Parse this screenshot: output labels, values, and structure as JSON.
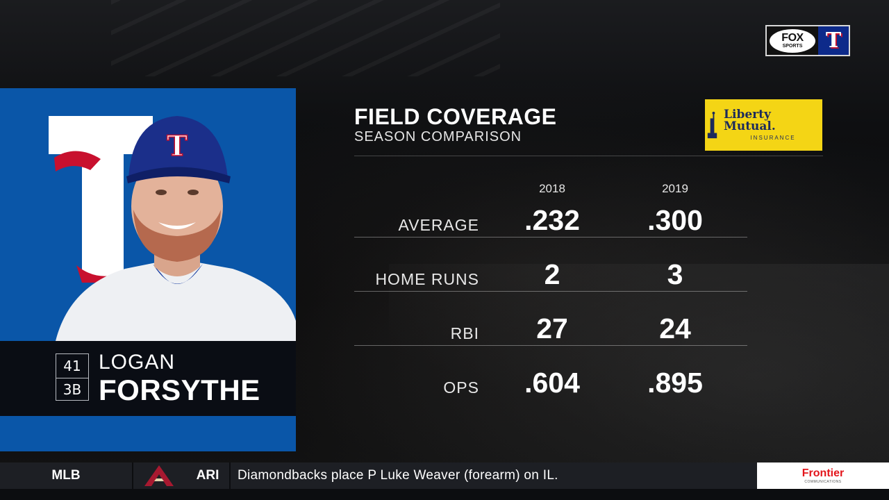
{
  "network_bug": {
    "network": "FOX",
    "network_sub": "SPORTS",
    "team_letter": "T"
  },
  "player": {
    "number": "41",
    "position": "3B",
    "first_name": "LOGAN",
    "last_name": "FORSYTHE",
    "team_logo": "rangers-t-logo",
    "cap_letter": "T"
  },
  "panel": {
    "title": "FIELD COVERAGE",
    "subtitle": "SEASON COMPARISON",
    "years": [
      "2018",
      "2019"
    ],
    "sponsor": {
      "name": "Liberty Mutual.",
      "tagline": "INSURANCE",
      "background": "#f4d515"
    },
    "stats": [
      {
        "label": "AVERAGE",
        "values": [
          ".232",
          ".300"
        ]
      },
      {
        "label": "HOME RUNS",
        "values": [
          "2",
          "3"
        ]
      },
      {
        "label": "RBI",
        "values": [
          "27",
          "24"
        ]
      },
      {
        "label": "OPS",
        "values": [
          ".604",
          ".895"
        ]
      }
    ]
  },
  "ticker": {
    "league": "MLB",
    "team_logo": "diamondbacks-a-logo",
    "team": "ARI",
    "headline": "Diamondbacks place P Luke Weaver (forearm) on IL.",
    "sponsor": "Frontier",
    "sponsor_sub": "COMMUNICATIONS"
  },
  "colors": {
    "rangers_blue": "#0a56a8",
    "rangers_red": "#c8102e",
    "name_bar": "#0a0d14",
    "ticker_bg": "#1d1f24"
  }
}
